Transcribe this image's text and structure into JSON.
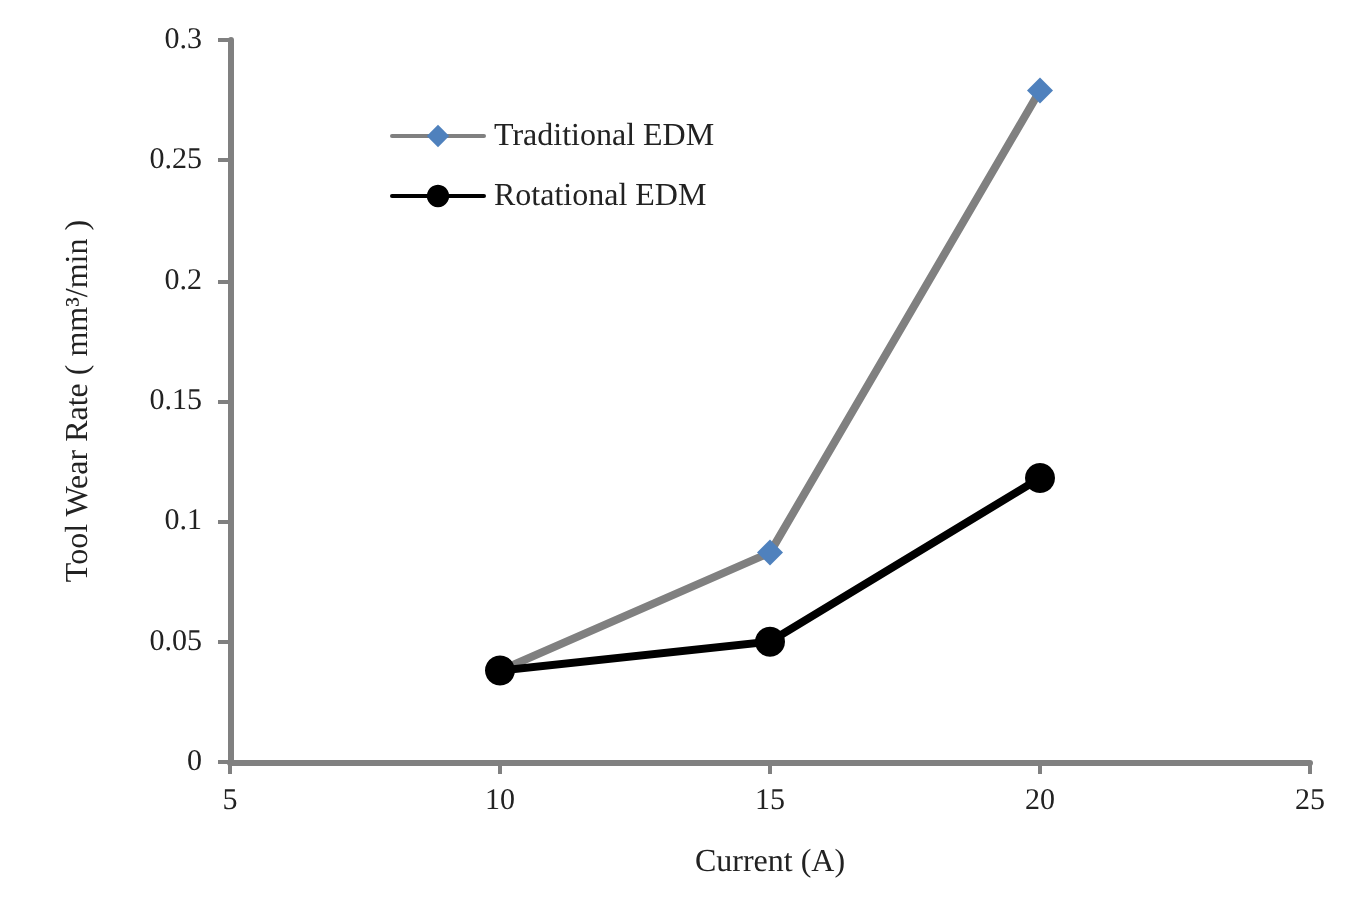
{
  "chart_data": {
    "type": "line",
    "xlabel": "Current (A)",
    "ylabel": "Tool Wear Rate ( mm³/min )",
    "x": [
      10,
      15,
      20
    ],
    "series": [
      {
        "name": "Traditional EDM",
        "color": "#808080",
        "marker": "diamond",
        "colors": [
          "#4f81bd",
          "#4f81bd",
          "#4f81bd"
        ],
        "values": [
          0.038,
          0.087,
          0.279
        ]
      },
      {
        "name": "Rotational EDM",
        "color": "#000000",
        "marker": "circle",
        "values": [
          0.038,
          0.05,
          0.118
        ]
      }
    ],
    "xlim": [
      5,
      25
    ],
    "xticks": [
      5,
      10,
      15,
      20,
      25
    ],
    "ylim": [
      0,
      0.3
    ],
    "yticks": [
      0,
      0.05,
      0.1,
      0.15,
      0.2,
      0.25,
      0.3
    ],
    "grid": false,
    "legend": "top left",
    "line_style": "solid"
  }
}
